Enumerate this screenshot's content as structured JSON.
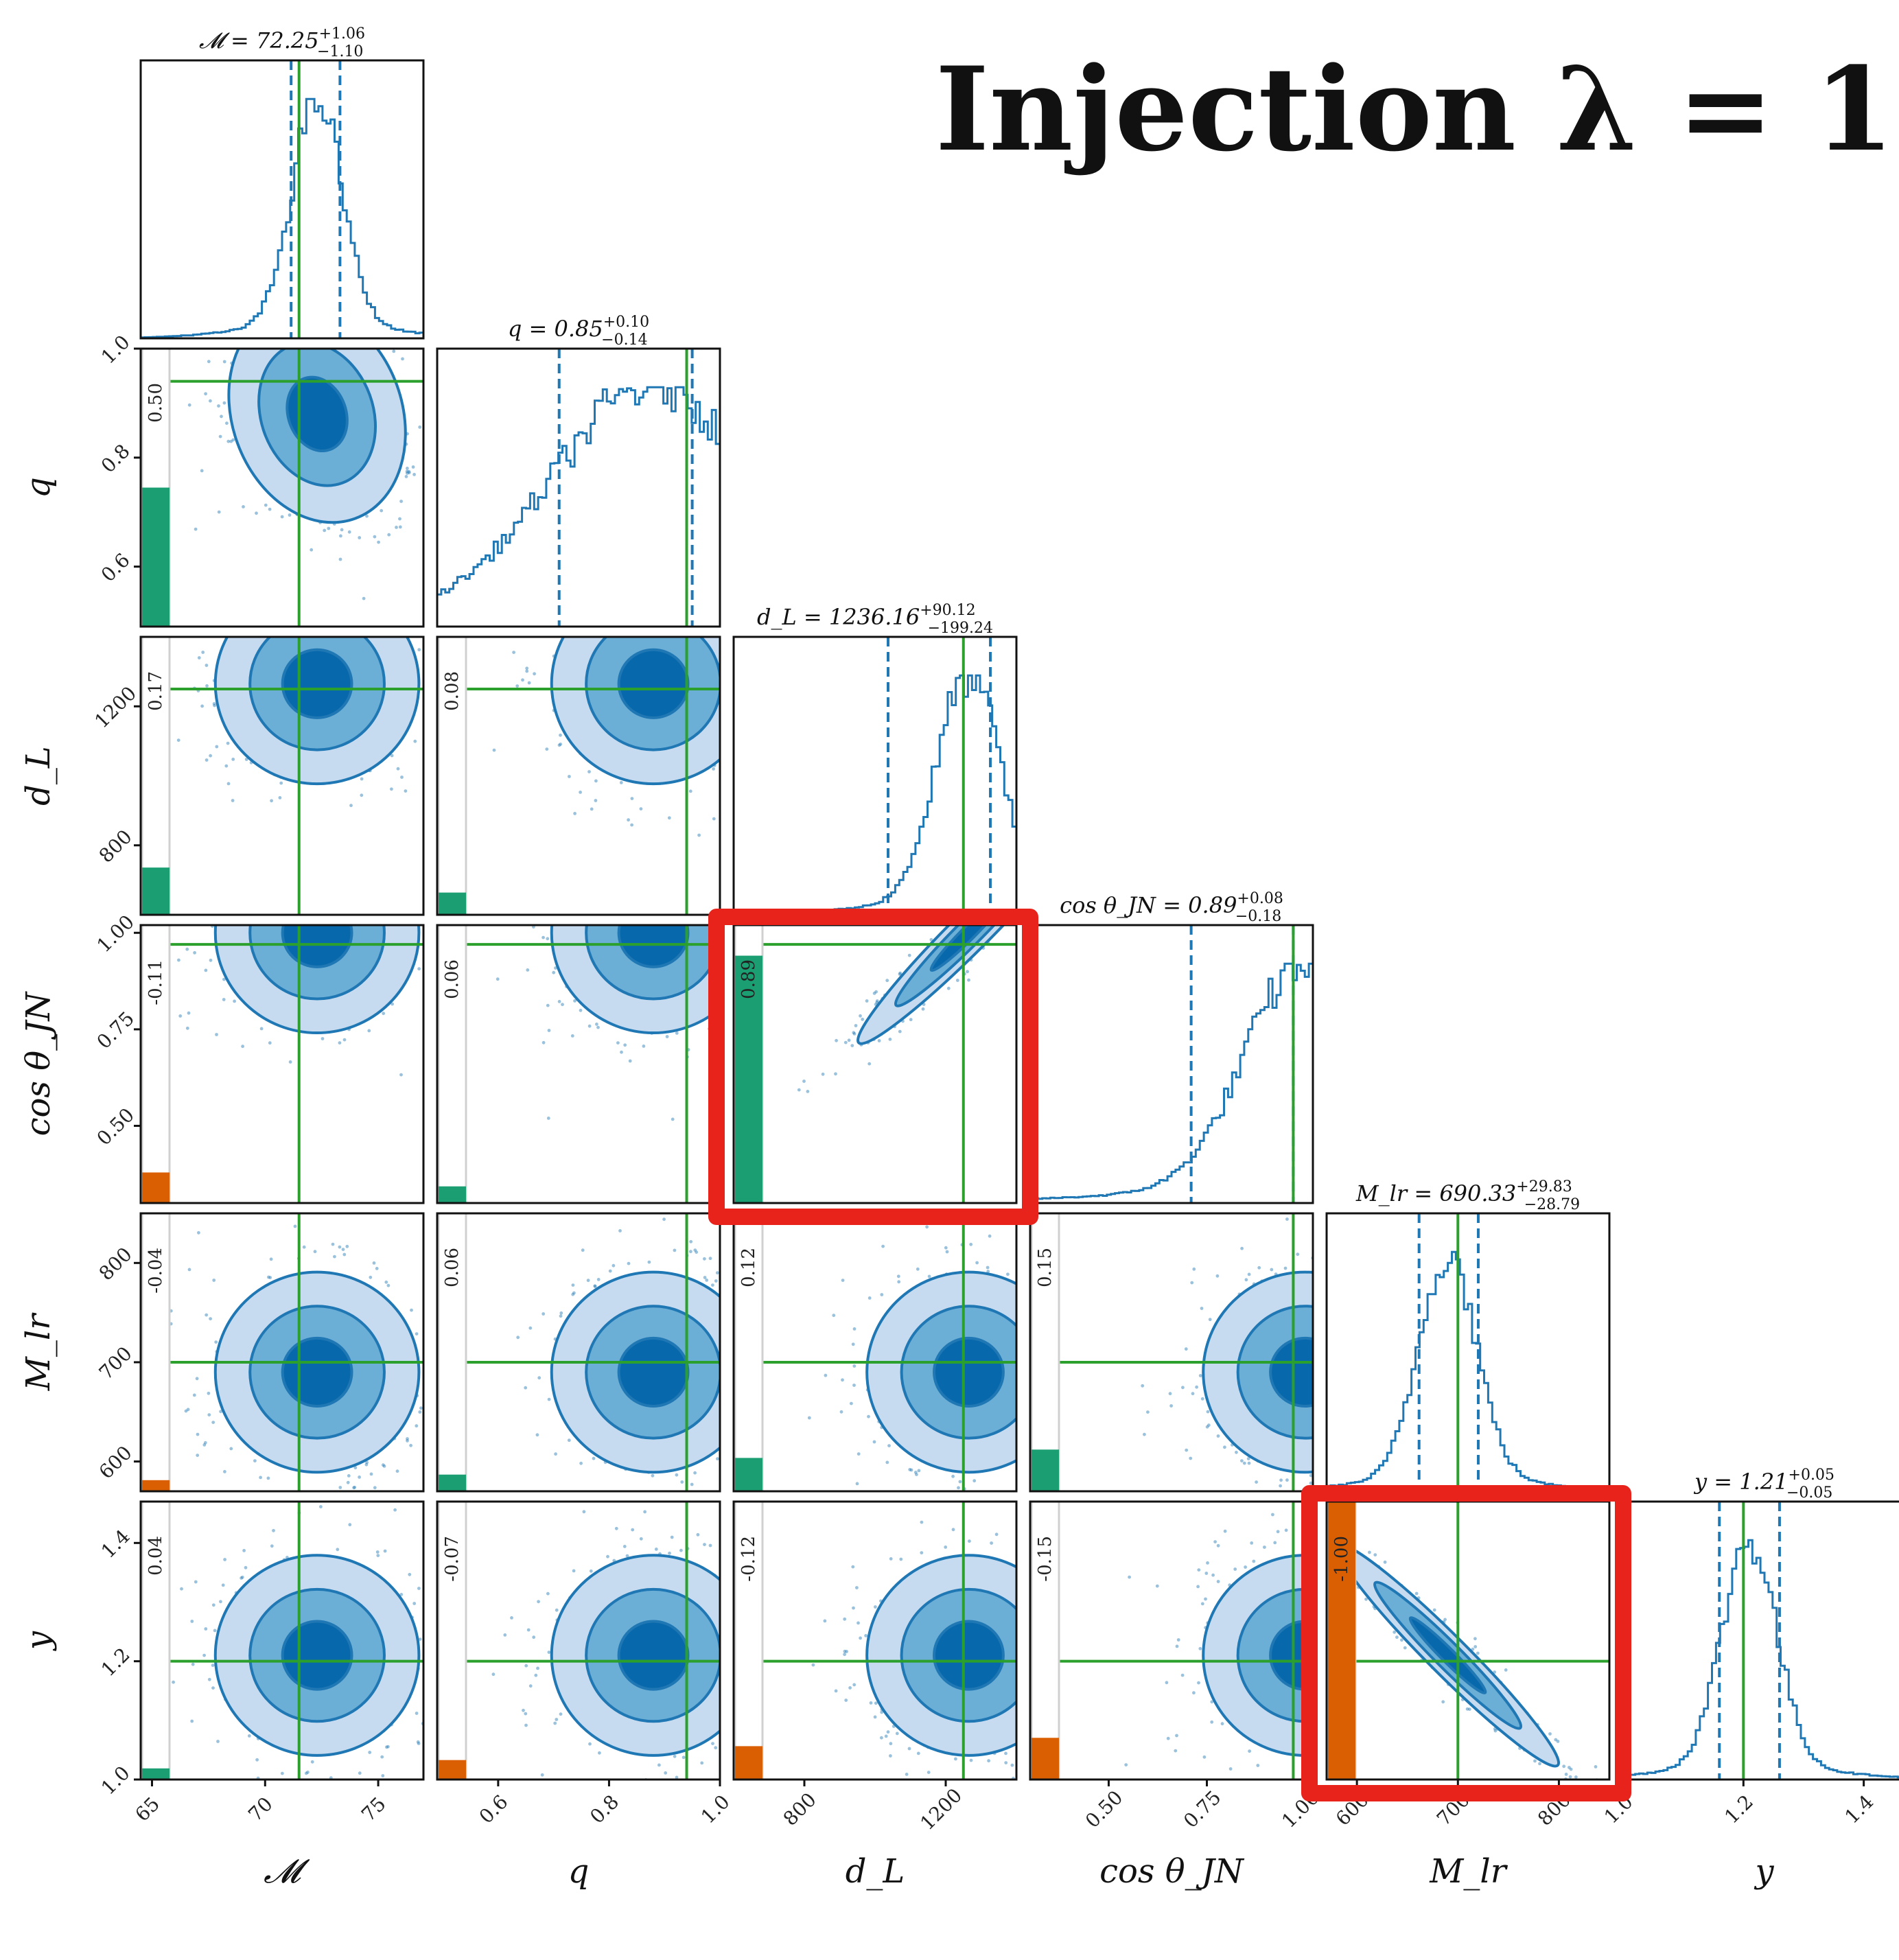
{
  "figure_title": "Injection λ = 1",
  "colors": {
    "blue": "#1f77b4",
    "fill1": "#c6dbef",
    "fill2": "#6baed6",
    "fill3": "#0868ac",
    "truth": "#2ca02c",
    "positive_bar": "#1a9e72",
    "negative_bar": "#d95f02",
    "highlight": "#e8231b",
    "bar_track": "#d0d0d0"
  },
  "chart_data": {
    "type": "corner",
    "parameters": [
      {
        "name": "chirp_mass",
        "label": "𝓜",
        "title_base": "𝓜 = 72.25",
        "title_sup": "+1.06",
        "title_sub": "−1.10",
        "median": 72.25,
        "plus": 1.06,
        "minus": 1.1,
        "truth": 71.5,
        "range": [
          64.5,
          77.0
        ],
        "ticks": [
          65,
          70,
          75
        ],
        "tick_labels": [
          "65",
          "70",
          "75"
        ],
        "hist_peak": 72.3,
        "hist_width": 1.1
      },
      {
        "name": "mass_ratio",
        "label": "q",
        "title_base": "q = 0.85",
        "title_sup": "+0.10",
        "title_sub": "−0.14",
        "median": 0.85,
        "plus": 0.1,
        "minus": 0.14,
        "truth": 0.94,
        "range": [
          0.49,
          1.0
        ],
        "ticks": [
          0.6,
          0.8,
          1.0
        ],
        "tick_labels": [
          "0.6",
          "0.8",
          "1.0"
        ],
        "hist_peak": 0.88,
        "hist_width": 0.18
      },
      {
        "name": "luminosity_distance",
        "label": "d_L",
        "title_base": "d_L = 1236.16",
        "title_sup": "+90.12",
        "title_sub": "−199.24",
        "median": 1236.16,
        "plus": 90.12,
        "minus": 199.24,
        "truth": 1250,
        "range": [
          600,
          1400
        ],
        "ticks": [
          800,
          1200
        ],
        "tick_labels": [
          "800",
          "1200"
        ],
        "hist_peak": 1265,
        "hist_width": 90
      },
      {
        "name": "cos_theta_jn",
        "label": "cos θ_JN",
        "title_base": "cos θ_JN = 0.89",
        "title_sup": "+0.08",
        "title_sub": "−0.18",
        "median": 0.89,
        "plus": 0.08,
        "minus": 0.18,
        "truth": 0.97,
        "range": [
          0.3,
          1.02
        ],
        "ticks": [
          0.5,
          0.75,
          1.0
        ],
        "tick_labels": [
          "0.50",
          "0.75",
          "1.00"
        ],
        "hist_peak": 1.0,
        "hist_width": 0.15
      },
      {
        "name": "lens_mass",
        "label": "M_lr",
        "title_base": "M_lr = 690.33",
        "title_sup": "+29.83",
        "title_sub": "−28.79",
        "median": 690.33,
        "plus": 29.83,
        "minus": 28.79,
        "truth": 700,
        "range": [
          570,
          850
        ],
        "ticks": [
          600,
          700,
          800
        ],
        "tick_labels": [
          "600",
          "700",
          "800"
        ],
        "hist_peak": 690,
        "hist_width": 28
      },
      {
        "name": "impact_parameter",
        "label": "y",
        "title_base": "y = 1.21",
        "title_sup": "+0.05",
        "title_sub": "−0.05",
        "median": 1.21,
        "plus": 0.05,
        "minus": 0.05,
        "truth": 1.2,
        "range": [
          1.0,
          1.47
        ],
        "ticks": [
          1.0,
          1.2,
          1.4
        ],
        "tick_labels": [
          "1.0",
          "1.2",
          "1.4"
        ],
        "hist_peak": 1.21,
        "hist_width": 0.045
      }
    ],
    "correlations": [
      {
        "row": 1,
        "col": 0,
        "value": 0.5,
        "label": "0.50"
      },
      {
        "row": 2,
        "col": 0,
        "value": 0.17,
        "label": "0.17"
      },
      {
        "row": 2,
        "col": 1,
        "value": 0.08,
        "label": "0.08"
      },
      {
        "row": 3,
        "col": 0,
        "value": -0.11,
        "label": "-0.11"
      },
      {
        "row": 3,
        "col": 1,
        "value": 0.06,
        "label": "0.06"
      },
      {
        "row": 3,
        "col": 2,
        "value": 0.89,
        "label": "0.89"
      },
      {
        "row": 4,
        "col": 0,
        "value": -0.04,
        "label": "-0.04"
      },
      {
        "row": 4,
        "col": 1,
        "value": 0.06,
        "label": "0.06"
      },
      {
        "row": 4,
        "col": 2,
        "value": 0.12,
        "label": "0.12"
      },
      {
        "row": 4,
        "col": 3,
        "value": 0.15,
        "label": "0.15"
      },
      {
        "row": 5,
        "col": 0,
        "value": 0.04,
        "label": "0.04"
      },
      {
        "row": 5,
        "col": 1,
        "value": -0.07,
        "label": "-0.07"
      },
      {
        "row": 5,
        "col": 2,
        "value": -0.12,
        "label": "-0.12"
      },
      {
        "row": 5,
        "col": 3,
        "value": -0.15,
        "label": "-0.15"
      },
      {
        "row": 5,
        "col": 4,
        "value": -1.0,
        "label": "-1.00"
      }
    ],
    "highlighted_panels": [
      {
        "row": 3,
        "col": 2
      },
      {
        "row": 5,
        "col": 4
      }
    ]
  }
}
